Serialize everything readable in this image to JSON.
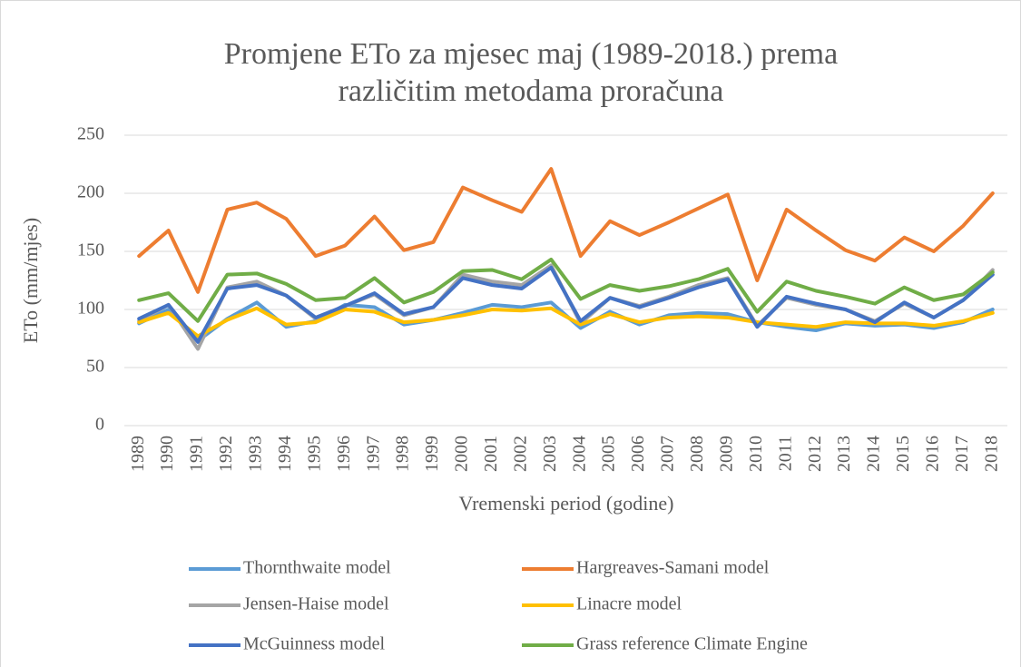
{
  "chart_data": {
    "type": "line",
    "title": [
      "Promjene ETo za mjesec maj (1989-2018.) prema",
      "različitim metodama proračuna"
    ],
    "x_label": "Vremenski period (godine)",
    "y_label": "ETo (mm/mjes)",
    "categories": [
      "1989",
      "1990",
      "1991",
      "1992",
      "1993",
      "1994",
      "1995",
      "1996",
      "1997",
      "1998",
      "1999",
      "2000",
      "2001",
      "2002",
      "2003",
      "2004",
      "2005",
      "2006",
      "2007",
      "2008",
      "2009",
      "2010",
      "2011",
      "2012",
      "2013",
      "2014",
      "2015",
      "2016",
      "2017",
      "2018"
    ],
    "ylim": [
      0,
      250
    ],
    "yticks": [
      0,
      50,
      100,
      150,
      200,
      250
    ],
    "grid": true,
    "legend": "bottom",
    "series": [
      {
        "name": "Thornthwaite model",
        "color": "#5b9bd5",
        "values": [
          88,
          100,
          73,
          92,
          106,
          85,
          90,
          104,
          102,
          87,
          91,
          97,
          104,
          102,
          106,
          84,
          98,
          87,
          95,
          97,
          96,
          89,
          85,
          82,
          88,
          86,
          87,
          84,
          89,
          100
        ]
      },
      {
        "name": "Hargreaves-Samani model",
        "color": "#ed7d31",
        "values": [
          146,
          168,
          115,
          186,
          192,
          178,
          146,
          155,
          180,
          151,
          158,
          205,
          194,
          184,
          221,
          146,
          176,
          164,
          175,
          187,
          199,
          125,
          186,
          168,
          151,
          142,
          162,
          150,
          172,
          200
        ]
      },
      {
        "name": "Jensen-Haise model",
        "color": "#a5a5a5",
        "values": [
          90,
          104,
          66,
          119,
          124,
          112,
          92,
          103,
          113,
          95,
          102,
          130,
          124,
          121,
          138,
          88,
          110,
          103,
          111,
          121,
          127,
          86,
          110,
          104,
          100,
          90,
          105,
          93,
          108,
          134
        ]
      },
      {
        "name": "Linacre model",
        "color": "#ffc000",
        "values": [
          89,
          97,
          77,
          91,
          101,
          87,
          89,
          100,
          98,
          89,
          91,
          95,
          100,
          99,
          101,
          87,
          96,
          89,
          93,
          94,
          93,
          89,
          87,
          85,
          89,
          88,
          88,
          86,
          90,
          97
        ]
      },
      {
        "name": "McGuinness model",
        "color": "#4472c4",
        "values": [
          92,
          104,
          72,
          118,
          121,
          112,
          93,
          103,
          114,
          96,
          102,
          127,
          121,
          118,
          136,
          90,
          110,
          102,
          110,
          119,
          126,
          85,
          111,
          105,
          100,
          89,
          106,
          93,
          108,
          130
        ]
      },
      {
        "name": "Grass reference Climate Engine",
        "color": "#70ad47",
        "values": [
          108,
          114,
          90,
          130,
          131,
          122,
          108,
          110,
          127,
          106,
          115,
          133,
          134,
          126,
          143,
          109,
          121,
          116,
          120,
          126,
          135,
          98,
          124,
          116,
          111,
          105,
          119,
          108,
          113,
          132
        ]
      }
    ]
  }
}
